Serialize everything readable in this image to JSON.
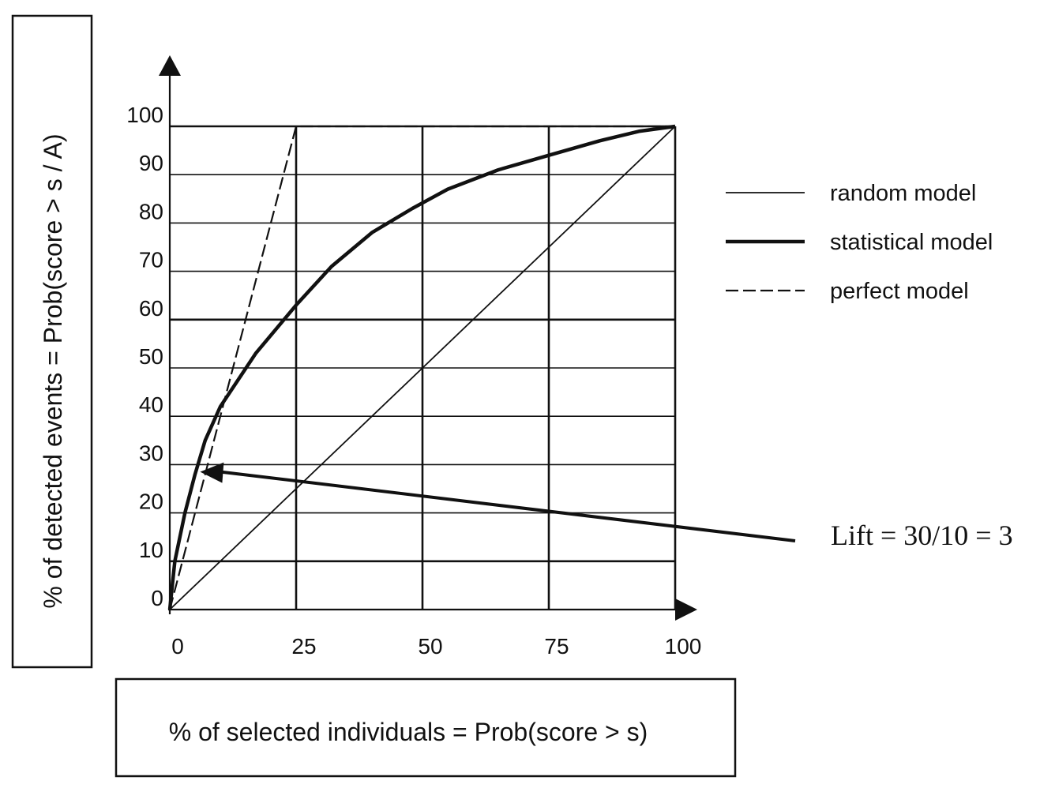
{
  "chart_data": {
    "type": "line",
    "xlabel": "% of selected individuals = Prob(score > s)",
    "ylabel": "% of detected events = Prob(score > s / A)",
    "xlim": [
      0,
      100
    ],
    "ylim": [
      0,
      100
    ],
    "x_ticks": [
      "0",
      "25",
      "50",
      "75",
      "100"
    ],
    "y_ticks": [
      "0",
      "10",
      "20",
      "30",
      "40",
      "50",
      "60",
      "70",
      "80",
      "90",
      "100"
    ],
    "grid": true,
    "legend_position": "right",
    "series": [
      {
        "name": "random model",
        "style": "thin-solid",
        "points": [
          [
            0,
            0
          ],
          [
            100,
            100
          ]
        ]
      },
      {
        "name": "statistical model",
        "style": "thick-solid",
        "points": [
          [
            0,
            0
          ],
          [
            1,
            10
          ],
          [
            3,
            20
          ],
          [
            5,
            28
          ],
          [
            7,
            35
          ],
          [
            10,
            42
          ],
          [
            17,
            53
          ],
          [
            25,
            63
          ],
          [
            32,
            71
          ],
          [
            40,
            78
          ],
          [
            48,
            83
          ],
          [
            55,
            87
          ],
          [
            65,
            91
          ],
          [
            75,
            94
          ],
          [
            85,
            97
          ],
          [
            93,
            99
          ],
          [
            100,
            100
          ]
        ]
      },
      {
        "name": "perfect model",
        "style": "dashed",
        "points": [
          [
            0,
            0
          ],
          [
            25,
            100
          ],
          [
            100,
            100
          ]
        ]
      }
    ],
    "annotations": [
      {
        "text": "Lift = 30/10 = 3",
        "point_to": [
          6,
          28.5
        ]
      }
    ]
  },
  "colors": {
    "ink": "#111111",
    "background": "#ffffff"
  }
}
